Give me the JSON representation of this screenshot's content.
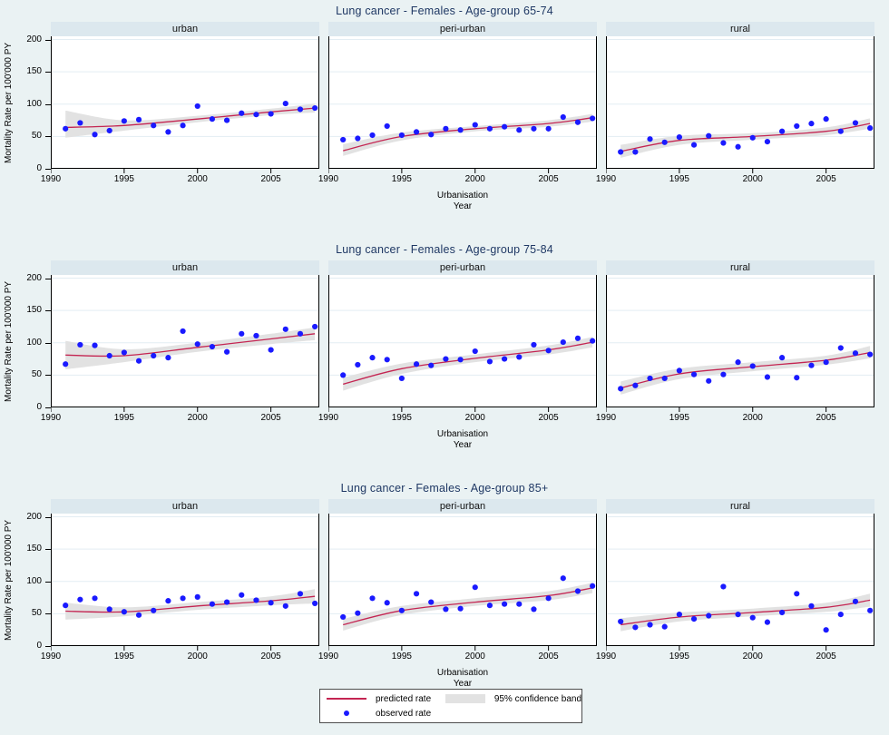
{
  "figure": {
    "background": "#eaf2f3",
    "header_strip_color": "#dce8ee",
    "title_color": "#1f3864",
    "predicted_line_color": "#c42552",
    "observed_dot_color": "#1a1aff",
    "band_color": "#e2e2e2",
    "gridline_color": "#e3edf3"
  },
  "axis": {
    "ylabel": "Mortality Rate per 100'000 PY",
    "xlabel_line1": "Urbanisation",
    "xlabel_line2": "Year",
    "yticks": [
      0,
      50,
      100,
      150,
      200
    ],
    "xticks": [
      1990,
      1995,
      2000,
      2005
    ],
    "xrange": [
      1990,
      2008.3
    ],
    "yrange": [
      0,
      205
    ],
    "grid": true
  },
  "legend": {
    "predicted_label": "predicted rate",
    "observed_label": "observed rate",
    "band_label": "95% confidence band"
  },
  "chart_data": [
    {
      "type": "scatter",
      "title": "Lung cancer - Females - Age-group 65-74",
      "years": [
        1991,
        1992,
        1993,
        1994,
        1995,
        1996,
        1997,
        1998,
        1999,
        2000,
        2001,
        2002,
        2003,
        2004,
        2005,
        2006,
        2007,
        2008
      ],
      "trend_x": [
        1991,
        1995,
        2000,
        2005,
        2008
      ],
      "facets": [
        {
          "label": "urban",
          "observed": [
            62,
            71,
            53,
            59,
            74,
            76,
            67,
            57,
            67,
            97,
            77,
            75,
            86,
            84,
            85,
            101,
            92,
            94
          ],
          "trend": [
            64,
            67,
            77,
            88,
            94
          ],
          "band_lower": [
            48,
            59,
            72,
            83,
            87
          ],
          "band_upper": [
            90,
            75,
            82,
            93,
            101
          ]
        },
        {
          "label": "peri-urban",
          "observed": [
            45,
            47,
            52,
            66,
            52,
            57,
            53,
            62,
            60,
            68,
            62,
            65,
            60,
            62,
            62,
            80,
            72,
            78
          ],
          "trend": [
            28,
            50,
            62,
            70,
            79
          ],
          "band_lower": [
            20,
            44,
            58,
            65,
            73
          ],
          "band_upper": [
            38,
            56,
            66,
            75,
            85
          ]
        },
        {
          "label": "rural",
          "observed": [
            26,
            26,
            46,
            41,
            49,
            37,
            51,
            40,
            34,
            48,
            42,
            58,
            66,
            70,
            77,
            58,
            71,
            63
          ],
          "trend": [
            27,
            44,
            50,
            58,
            70
          ],
          "band_lower": [
            17,
            37,
            45,
            52,
            62
          ],
          "band_upper": [
            37,
            51,
            55,
            64,
            78
          ]
        }
      ]
    },
    {
      "type": "scatter",
      "title": "Lung cancer - Females - Age-group 75-84",
      "years": [
        1991,
        1992,
        1993,
        1994,
        1995,
        1996,
        1997,
        1998,
        1999,
        2000,
        2001,
        2002,
        2003,
        2004,
        2005,
        2006,
        2007,
        2008
      ],
      "trend_x": [
        1991,
        1995,
        2000,
        2005,
        2008
      ],
      "facets": [
        {
          "label": "urban",
          "observed": [
            67,
            97,
            96,
            80,
            85,
            72,
            80,
            77,
            118,
            98,
            94,
            86,
            114,
            111,
            89,
            121,
            114,
            125
          ],
          "trend": [
            81,
            80,
            93,
            106,
            114
          ],
          "band_lower": [
            59,
            70,
            86,
            98,
            104
          ],
          "band_upper": [
            103,
            90,
            100,
            114,
            124
          ]
        },
        {
          "label": "peri-urban",
          "observed": [
            50,
            66,
            77,
            74,
            45,
            67,
            65,
            75,
            74,
            87,
            71,
            75,
            78,
            97,
            88,
            101,
            107,
            103
          ],
          "trend": [
            36,
            60,
            76,
            89,
            101
          ],
          "band_lower": [
            26,
            52,
            70,
            82,
            93
          ],
          "band_upper": [
            46,
            68,
            82,
            96,
            109
          ]
        },
        {
          "label": "rural",
          "observed": [
            29,
            34,
            45,
            45,
            57,
            51,
            41,
            51,
            70,
            64,
            47,
            77,
            46,
            65,
            70,
            92,
            84,
            82
          ],
          "trend": [
            30,
            52,
            63,
            73,
            85
          ],
          "band_lower": [
            20,
            44,
            56,
            66,
            76
          ],
          "band_upper": [
            40,
            60,
            70,
            80,
            95
          ]
        }
      ]
    },
    {
      "type": "scatter",
      "title": "Lung cancer - Females - Age-group 85+",
      "years": [
        1991,
        1992,
        1993,
        1994,
        1995,
        1996,
        1997,
        1998,
        1999,
        2000,
        2001,
        2002,
        2003,
        2004,
        2005,
        2006,
        2007,
        2008
      ],
      "trend_x": [
        1991,
        1995,
        2000,
        2005,
        2008
      ],
      "facets": [
        {
          "label": "urban",
          "observed": [
            63,
            72,
            74,
            57,
            53,
            48,
            55,
            70,
            74,
            76,
            65,
            68,
            79,
            71,
            67,
            62,
            81,
            66
          ],
          "trend": [
            54,
            53,
            62,
            70,
            77
          ],
          "band_lower": [
            41,
            46,
            56,
            63,
            66
          ],
          "band_upper": [
            67,
            60,
            68,
            77,
            88
          ]
        },
        {
          "label": "peri-urban",
          "observed": [
            45,
            51,
            74,
            67,
            55,
            81,
            68,
            57,
            58,
            91,
            63,
            65,
            65,
            57,
            74,
            105,
            85,
            93
          ],
          "trend": [
            33,
            55,
            68,
            78,
            90
          ],
          "band_lower": [
            24,
            48,
            62,
            71,
            82
          ],
          "band_upper": [
            42,
            62,
            74,
            85,
            98
          ]
        },
        {
          "label": "rural",
          "observed": [
            38,
            29,
            33,
            30,
            49,
            42,
            47,
            92,
            49,
            44,
            37,
            52,
            81,
            62,
            25,
            49,
            69,
            55
          ],
          "trend": [
            33,
            45,
            52,
            60,
            71
          ],
          "band_lower": [
            23,
            38,
            46,
            53,
            61
          ],
          "band_upper": [
            43,
            52,
            58,
            67,
            81
          ]
        }
      ]
    }
  ]
}
